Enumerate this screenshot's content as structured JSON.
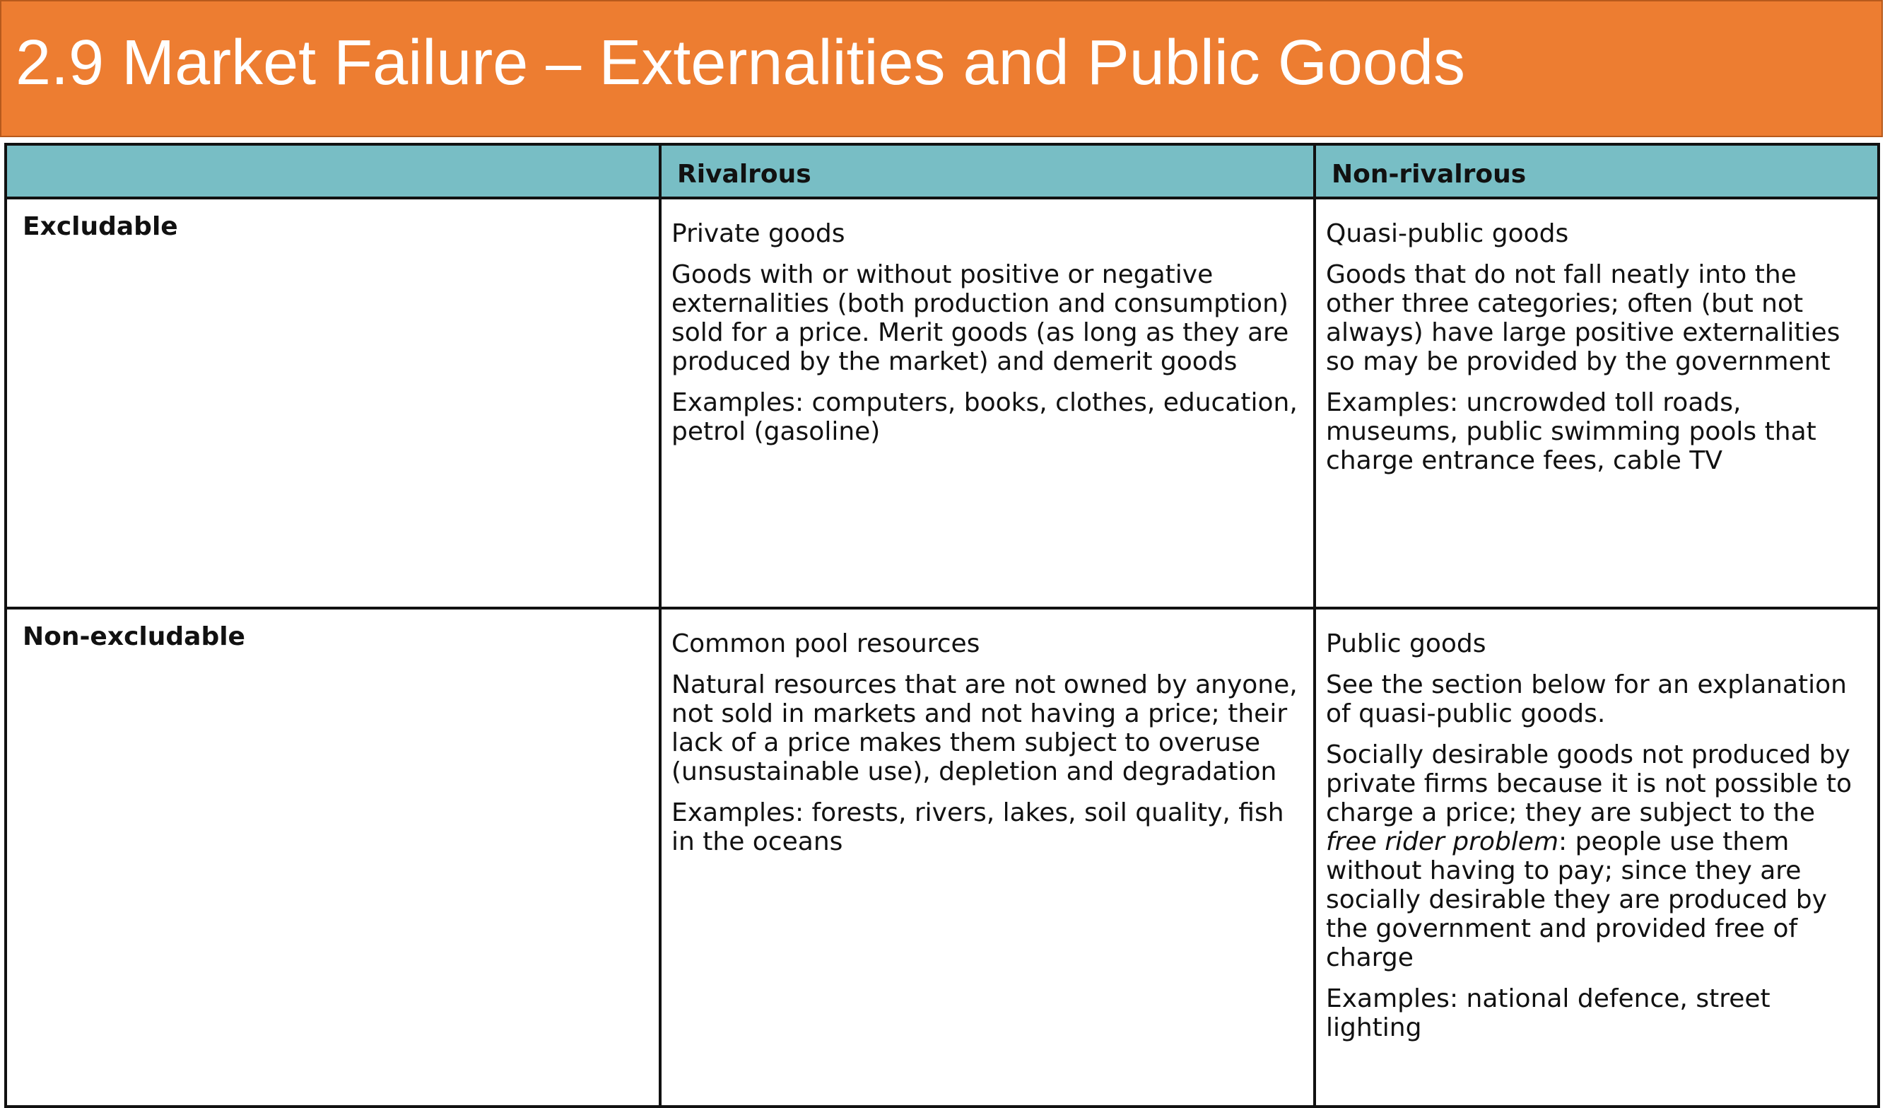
{
  "title": "2.9 Market Failure – Externalities and Public Goods",
  "table": {
    "headers": [
      "",
      "Rivalrous",
      "Non-rivalrous"
    ],
    "rows": [
      {
        "label": "Excludable",
        "rivalrous": {
          "name": "Private goods",
          "description": "Goods with or without positive or negative externalities (both production and consumption) sold for a price. Merit goods (as long as they are produced by the market) and demerit goods",
          "examples": "Examples: computers, books, clothes, education, petrol (gasoline)"
        },
        "non_rivalrous": {
          "name": "Quasi-public goods",
          "description": "Goods that do not fall neatly into the other three categories; often (but not always) have large positive externalities so may be provided by the government",
          "examples": "Examples: uncrowded toll roads, museums, public swimming pools that charge entrance fees, cable TV"
        }
      },
      {
        "label": "Non-excludable",
        "rivalrous": {
          "name": "Common pool resources",
          "description": "Natural resources that are not owned by anyone, not sold in markets and not having a price; their lack of a price makes them subject to overuse (unsustainable use), depletion and degradation",
          "examples": "Examples: forests, rivers, lakes, soil quality, fish in the oceans"
        },
        "non_rivalrous": {
          "name": "Public goods",
          "note": "See the section below for an explanation of quasi-public goods.",
          "description_before": "Socially desirable goods not produced by private firms because it is not possible to charge a price; they are subject to the ",
          "description_emphasis": "free rider problem",
          "description_after": ": people use them without having to pay; since they are socially desirable they are produced by the government and provided free of charge",
          "examples": "Examples: national defence, street lighting"
        }
      }
    ]
  }
}
